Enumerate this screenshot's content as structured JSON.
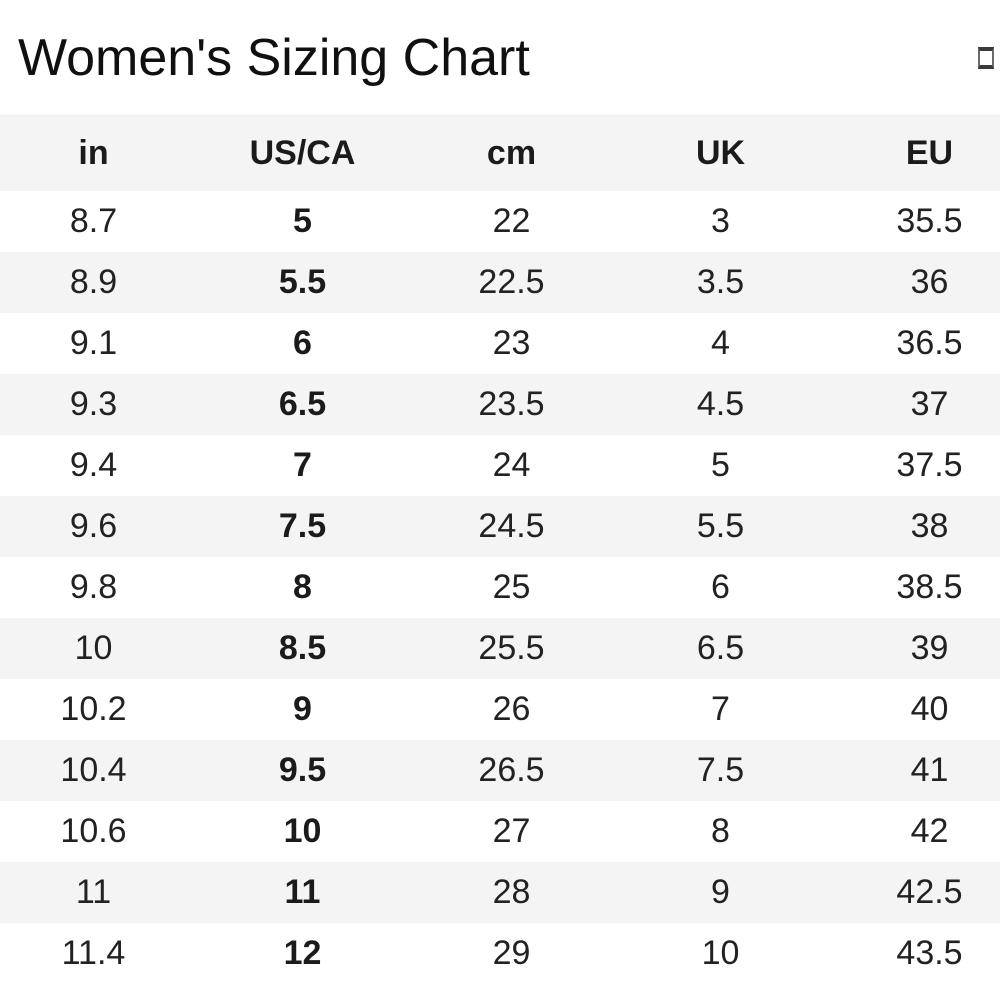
{
  "header": {
    "title": "Women's Sizing Chart",
    "corner_icon": "square-outline-icon"
  },
  "table": {
    "headers": [
      "in",
      "US/CA",
      "cm",
      "UK",
      "EU"
    ],
    "bold_column_index": 1,
    "rows": [
      [
        "8.7",
        "5",
        "22",
        "3",
        "35.5"
      ],
      [
        "8.9",
        "5.5",
        "22.5",
        "3.5",
        "36"
      ],
      [
        "9.1",
        "6",
        "23",
        "4",
        "36.5"
      ],
      [
        "9.3",
        "6.5",
        "23.5",
        "4.5",
        "37"
      ],
      [
        "9.4",
        "7",
        "24",
        "5",
        "37.5"
      ],
      [
        "9.6",
        "7.5",
        "24.5",
        "5.5",
        "38"
      ],
      [
        "9.8",
        "8",
        "25",
        "6",
        "38.5"
      ],
      [
        "10",
        "8.5",
        "25.5",
        "6.5",
        "39"
      ],
      [
        "10.2",
        "9",
        "26",
        "7",
        "40"
      ],
      [
        "10.4",
        "9.5",
        "26.5",
        "7.5",
        "41"
      ],
      [
        "10.6",
        "10",
        "27",
        "8",
        "42"
      ],
      [
        "11",
        "11",
        "28",
        "9",
        "42.5"
      ],
      [
        "11.4",
        "12",
        "29",
        "10",
        "43.5"
      ]
    ]
  },
  "colors": {
    "stripe": "#f4f4f4",
    "header_bg": "#f4f4f4",
    "body_text": "#222222",
    "title_text": "#101010"
  }
}
